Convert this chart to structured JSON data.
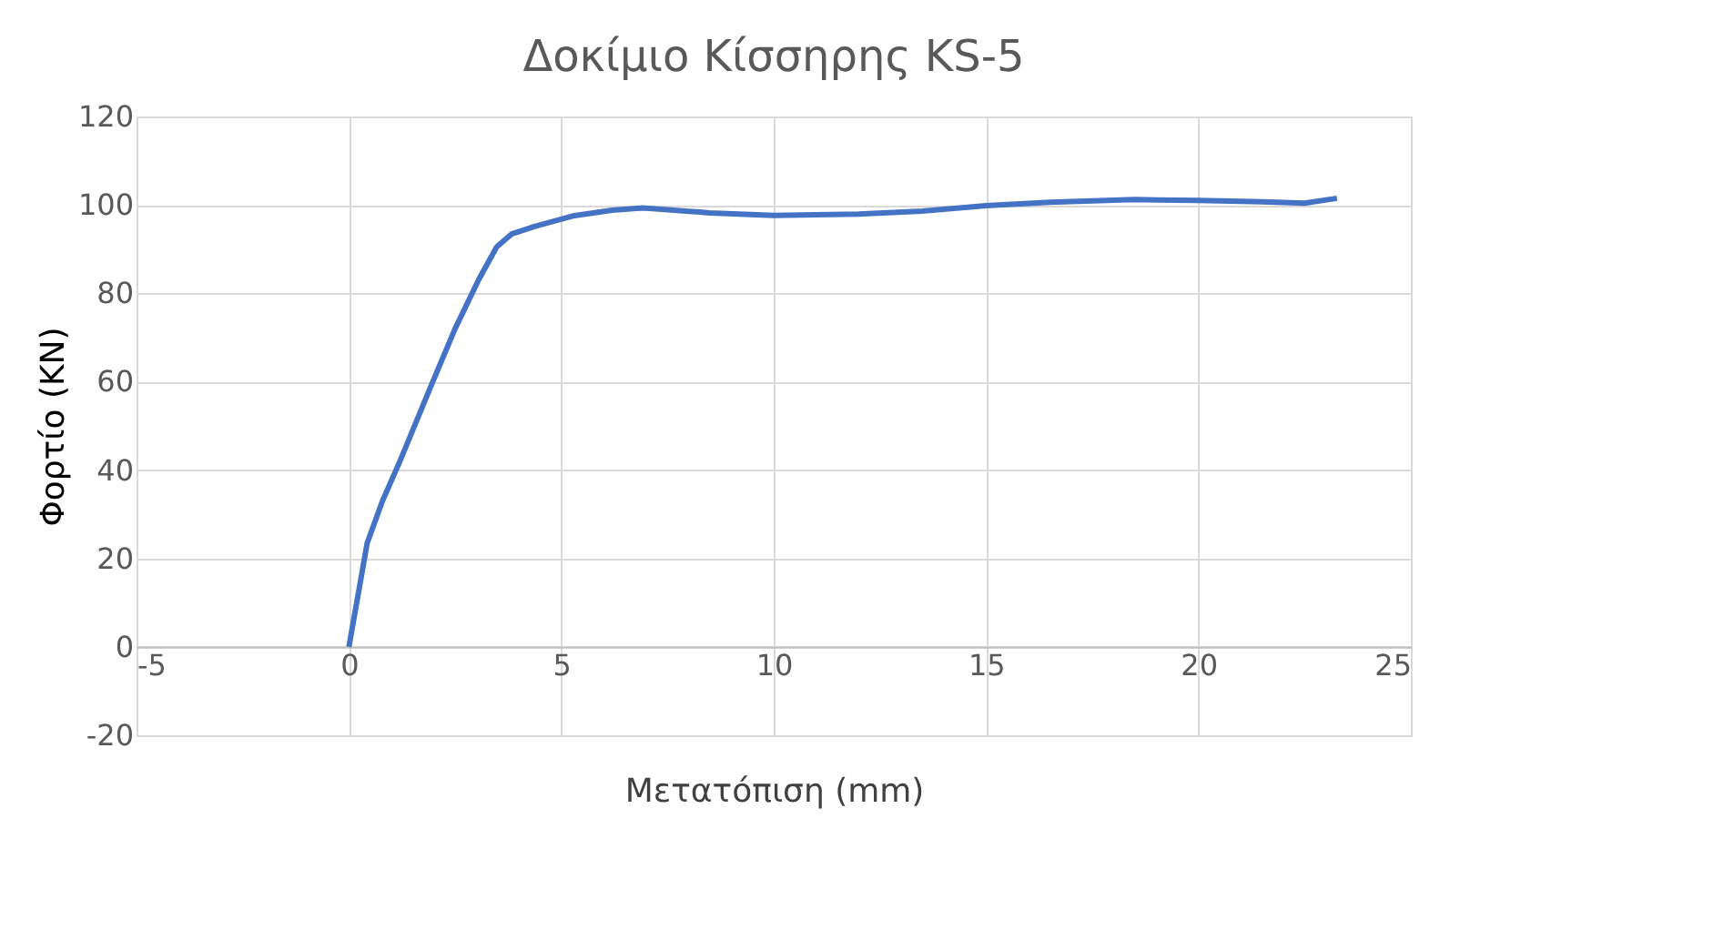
{
  "chart_data": {
    "type": "line",
    "title": "Δοκίμιο Κίσσηρης KS-5",
    "xlabel": "Μετατόπιση (mm)",
    "ylabel": "Φορτίο (KN)",
    "xlim": [
      -5,
      25
    ],
    "xticks": [
      -5,
      0,
      5,
      10,
      15,
      20,
      25
    ],
    "ylim": [
      -20,
      120
    ],
    "yticks": [
      -20,
      0,
      20,
      40,
      60,
      80,
      100,
      120
    ],
    "grid": true,
    "marker": "none",
    "line_style": "solid",
    "series": [
      {
        "color": "#4472c4",
        "x": [
          0,
          0.43,
          0.79,
          1.2,
          1.93,
          2.5,
          3.05,
          3.48,
          3.83,
          4.37,
          5.27,
          6.2,
          6.92,
          8.5,
          10,
          12,
          13.5,
          15,
          16.5,
          18.5,
          20,
          21.5,
          22.5,
          23.26
        ],
        "values": [
          0,
          23.5,
          33,
          42,
          59,
          72,
          83,
          90.5,
          93.4,
          95.1,
          97.5,
          98.8,
          99.3,
          98.2,
          97.6,
          97.9,
          98.6,
          99.8,
          100.6,
          101.2,
          101,
          100.7,
          100.4,
          101.5
        ]
      }
    ]
  }
}
